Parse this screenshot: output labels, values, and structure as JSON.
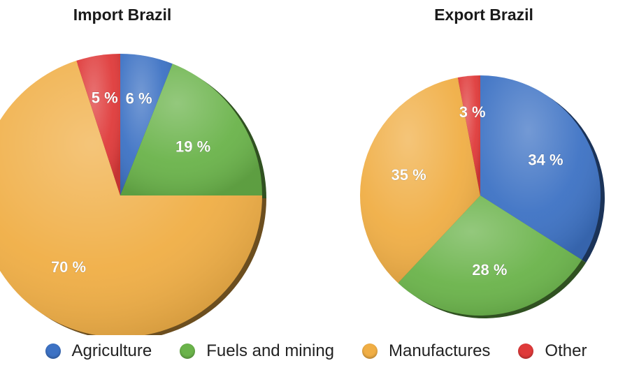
{
  "chart_data": [
    {
      "type": "pie",
      "title": "Import Brazil",
      "slices": [
        {
          "name": "Agriculture",
          "value": 6,
          "label": "6 %"
        },
        {
          "name": "Fuels and mining",
          "value": 19,
          "label": "19 %"
        },
        {
          "name": "Manufactures",
          "value": 70,
          "label": "70 %"
        },
        {
          "name": "Other",
          "value": 5,
          "label": "5 %"
        }
      ]
    },
    {
      "type": "pie",
      "title": "Export Brazil",
      "slices": [
        {
          "name": "Agriculture",
          "value": 34,
          "label": "34 %"
        },
        {
          "name": "Fuels and mining",
          "value": 28,
          "label": "28 %"
        },
        {
          "name": "Manufactures",
          "value": 35,
          "label": "35 %"
        },
        {
          "name": "Other",
          "value": 3,
          "label": "3 %"
        }
      ]
    }
  ],
  "legend": {
    "placement": "bottom",
    "items": [
      {
        "name": "Agriculture",
        "color": "#3d72c4"
      },
      {
        "name": "Fuels and mining",
        "color": "#6ab34a"
      },
      {
        "name": "Manufactures",
        "color": "#f0ae45"
      },
      {
        "name": "Other",
        "color": "#df3a3a"
      }
    ]
  }
}
